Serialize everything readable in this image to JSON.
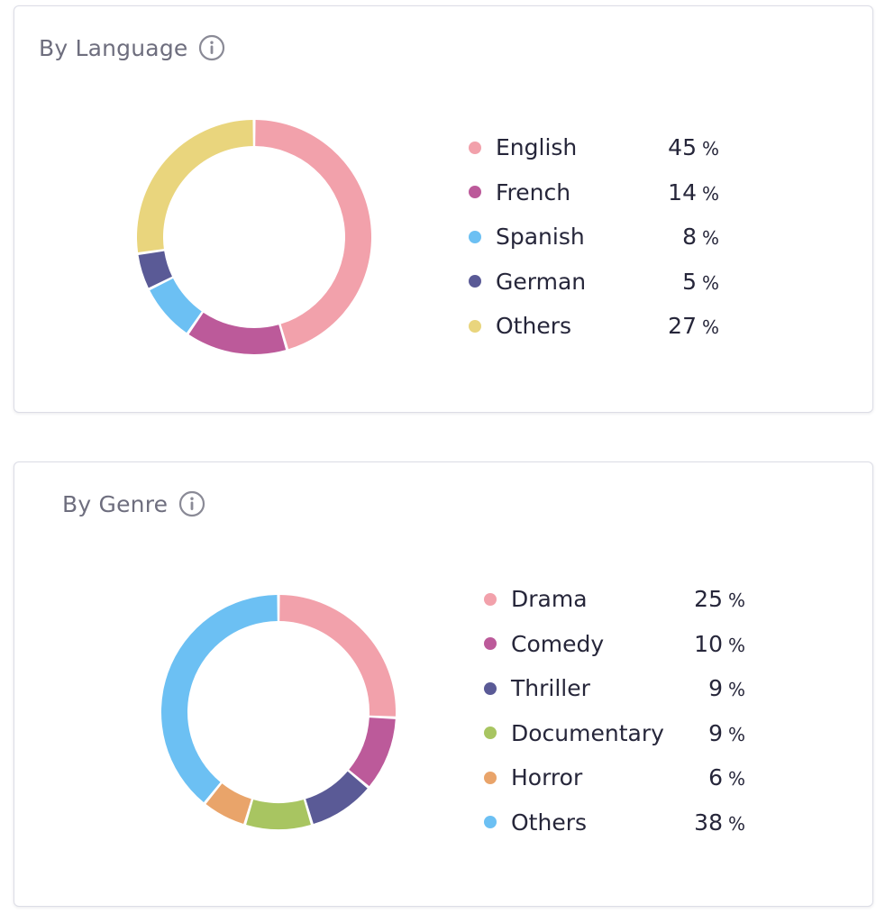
{
  "chart_data": [
    {
      "type": "pie",
      "title": "By Language",
      "unit": "%",
      "categories": [
        "English",
        "French",
        "Spanish",
        "German",
        "Others"
      ],
      "values": [
        45,
        14,
        8,
        5,
        27
      ],
      "colors": [
        "#F2A1AB",
        "#BC5A9A",
        "#6CC0F3",
        "#5A5A96",
        "#E9D57D"
      ],
      "legend_position": "right"
    },
    {
      "type": "pie",
      "title": "By Genre",
      "unit": "%",
      "categories": [
        "Drama",
        "Comedy",
        "Thriller",
        "Documentary",
        "Horror",
        "Others"
      ],
      "values": [
        25,
        10,
        9,
        9,
        6,
        38
      ],
      "colors": [
        "#F2A1AB",
        "#BC5A9A",
        "#5A5A96",
        "#A8C561",
        "#E9A46A",
        "#6CC0F3"
      ],
      "legend_position": "right"
    }
  ],
  "icons": {
    "info": "info-icon"
  }
}
